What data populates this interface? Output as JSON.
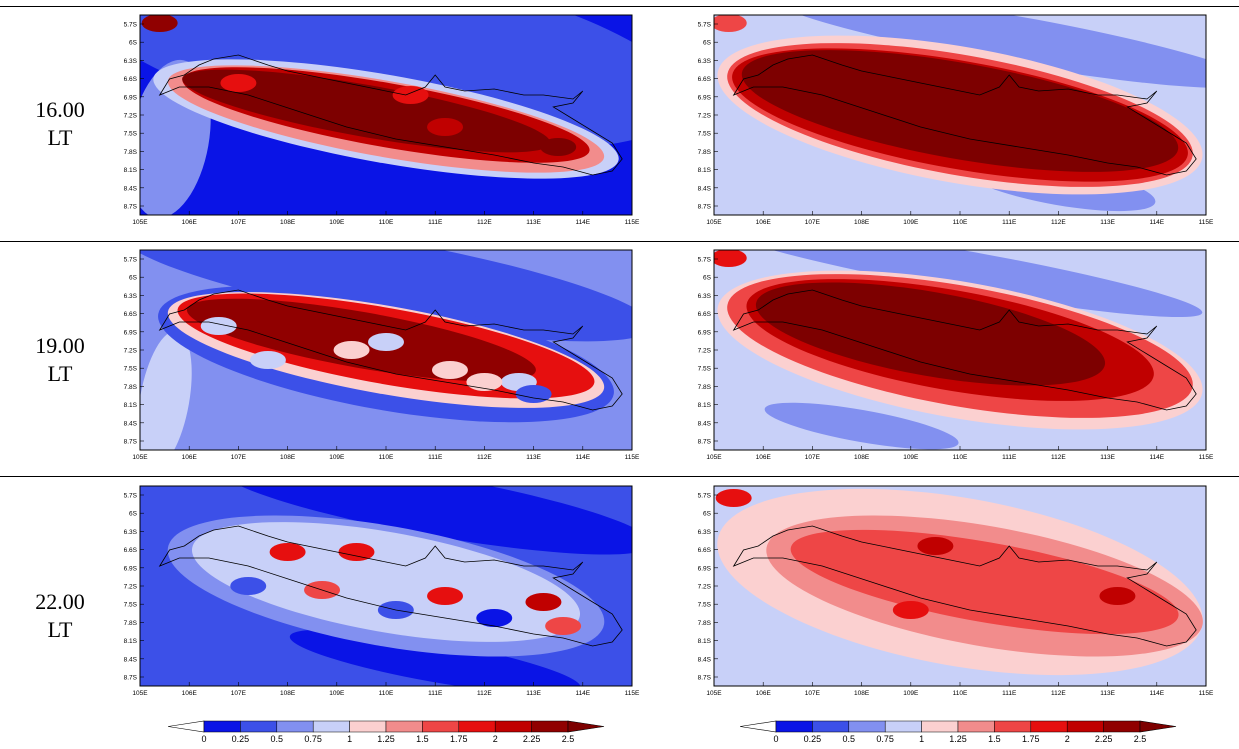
{
  "row_labels": [
    {
      "time": "16.00",
      "unit": "LT"
    },
    {
      "time": "19.00",
      "unit": "LT"
    },
    {
      "time": "22.00",
      "unit": "LT"
    }
  ],
  "x_ticks": [
    "105E",
    "106E",
    "107E",
    "108E",
    "109E",
    "110E",
    "111E",
    "112E",
    "113E",
    "114E",
    "115E"
  ],
  "y_ticks": [
    "5.7S",
    "6S",
    "6.3S",
    "6.6S",
    "6.9S",
    "7.2S",
    "7.5S",
    "7.8S",
    "8.1S",
    "8.4S",
    "8.7S"
  ],
  "colorbar": {
    "ticks": [
      "0",
      "0.25",
      "0.5",
      "0.75",
      "1",
      "1.25",
      "1.5",
      "1.75",
      "2",
      "2.25",
      "2.5"
    ],
    "colors": [
      "#ffffff",
      "#0a14e6",
      "#3c50e8",
      "#8290f0",
      "#c8d0f8",
      "#fbd0d0",
      "#f28c8c",
      "#ee4646",
      "#e60f0f",
      "#c00000",
      "#900000",
      "#7d0000"
    ]
  },
  "map_panels": [
    {
      "row": "16.00",
      "column": "left",
      "level_style": "sharp"
    },
    {
      "row": "16.00",
      "column": "right",
      "level_style": "smooth"
    },
    {
      "row": "19.00",
      "column": "left",
      "level_style": "speckled"
    },
    {
      "row": "19.00",
      "column": "right",
      "level_style": "smooth"
    },
    {
      "row": "22.00",
      "column": "left",
      "level_style": "mixed"
    },
    {
      "row": "22.00",
      "column": "right",
      "level_style": "broad"
    }
  ]
}
